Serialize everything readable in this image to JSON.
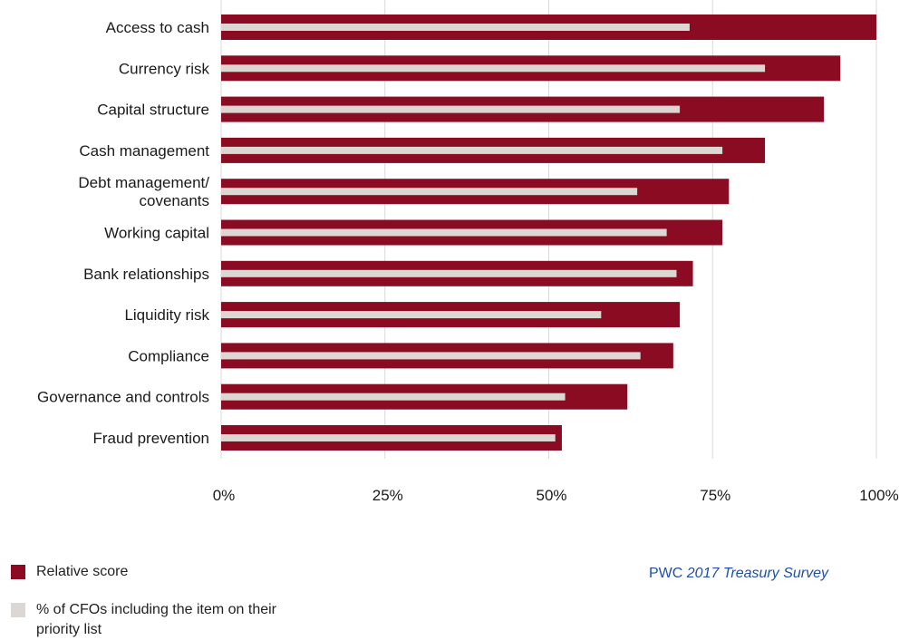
{
  "colors": {
    "relative": "#8b0b23",
    "cfo": "#dcd7d3",
    "grid": "#d9d9d9",
    "source_text": "#1f4fa6"
  },
  "chart_data": {
    "type": "bar",
    "orientation": "horizontal",
    "categories": [
      [
        "Access to cash"
      ],
      [
        "Currency risk"
      ],
      [
        "Capital structure"
      ],
      [
        "Cash management"
      ],
      [
        "Debt management/",
        "covenants"
      ],
      [
        "Working capital"
      ],
      [
        "Bank relationships"
      ],
      [
        "Liquidity risk"
      ],
      [
        "Compliance"
      ],
      [
        "Governance and controls"
      ],
      [
        "Fraud prevention"
      ]
    ],
    "series": [
      {
        "name": "Relative score",
        "values": [
          100,
          94.5,
          92,
          83,
          77.5,
          76.5,
          72,
          70,
          69,
          62,
          52
        ]
      },
      {
        "name": "% of CFOs including the item on their priority list",
        "values": [
          71.5,
          83,
          70,
          76.5,
          63.5,
          68,
          69.5,
          58,
          64,
          52.5,
          51
        ]
      }
    ],
    "x_ticks": [
      "0%",
      "25%",
      "50%",
      "75%",
      "100%"
    ],
    "xlim": [
      0,
      100
    ],
    "grid": true,
    "legend_position": "bottom-left"
  },
  "legend": {
    "relative_label": "Relative score",
    "cfo_label": "% of CFOs including the item on their priority list"
  },
  "source": {
    "org": "PWC",
    "title": "2017 Treasury Survey"
  }
}
